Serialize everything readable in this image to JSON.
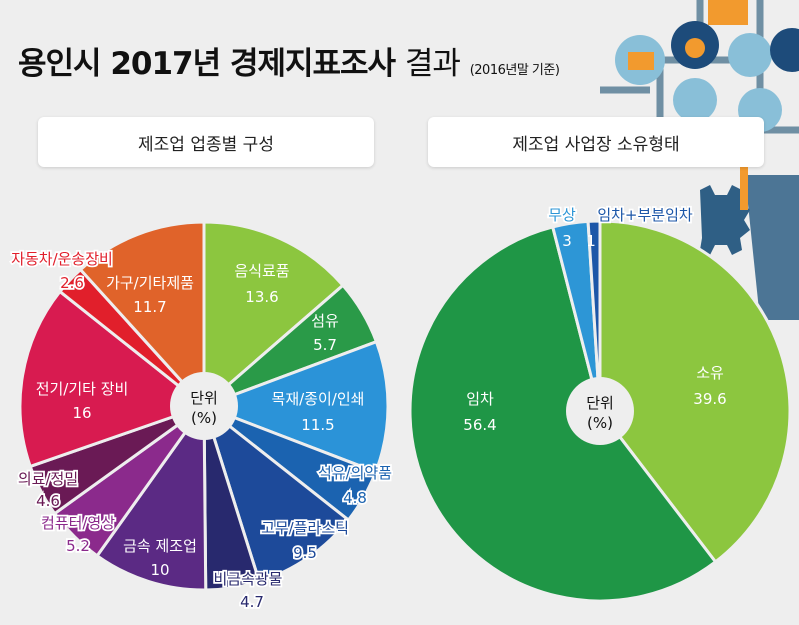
{
  "title": {
    "main": "용인시 2017년 경제지표조사",
    "suffix": "결과",
    "note": "(2016년말 기준)"
  },
  "chart_data": [
    {
      "type": "pie",
      "title": "제조업 업종별 구성",
      "center_label": [
        "단위",
        "(%)"
      ],
      "categories": [
        "음식료품",
        "섬유",
        "목재/종이/인쇄",
        "석유/의약품",
        "고무/플라스틱",
        "비금속광물",
        "금속 제조업",
        "컴퓨터/영상",
        "의료/정밀",
        "전기/기타 장비",
        "자동차/운송장비",
        "가구/기타제품"
      ],
      "values": [
        13.6,
        5.7,
        11.5,
        4.8,
        9.5,
        4.7,
        10,
        5.2,
        4.6,
        16,
        2.6,
        11.7
      ],
      "value_labels": [
        "13.6",
        "5.7",
        "11.5",
        "4.8",
        "9.5",
        "4.7",
        "10",
        "5.2",
        "4.6",
        "16",
        "2.6",
        "11.7"
      ],
      "colors": [
        "#8cc63f",
        "#2a9a48",
        "#2b93d8",
        "#1b63b0",
        "#1d4a9a",
        "#28296e",
        "#5b2a84",
        "#8b2a8c",
        "#6a1a55",
        "#d81b50",
        "#e11f2b",
        "#e0632a"
      ]
    },
    {
      "type": "pie",
      "title": "제조업 사업장 소유형태",
      "center_label": [
        "단위",
        "(%)"
      ],
      "categories": [
        "소유",
        "임차",
        "무상",
        "임차+부분임차"
      ],
      "values": [
        39.6,
        56.4,
        3,
        1
      ],
      "value_labels": [
        "39.6",
        "56.4",
        "3",
        "1"
      ],
      "colors": [
        "#8cc63f",
        "#1f9646",
        "#2d96d6",
        "#1d57a8"
      ]
    }
  ]
}
